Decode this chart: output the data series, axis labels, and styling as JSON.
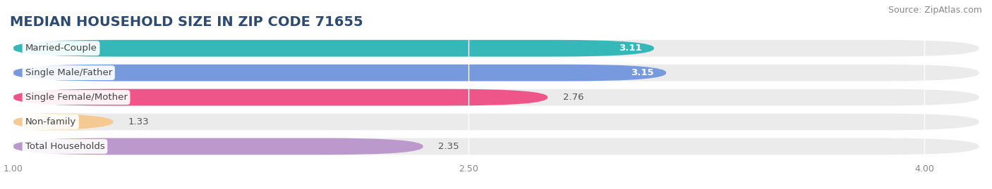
{
  "title": "MEDIAN HOUSEHOLD SIZE IN ZIP CODE 71655",
  "source": "Source: ZipAtlas.com",
  "categories": [
    "Married-Couple",
    "Single Male/Father",
    "Single Female/Mother",
    "Non-family",
    "Total Households"
  ],
  "values": [
    3.11,
    3.15,
    2.76,
    1.33,
    2.35
  ],
  "bar_colors": [
    "#36b8b8",
    "#7799dd",
    "#ee5588",
    "#f5c992",
    "#bb99cc"
  ],
  "xlim_left": 1.0,
  "xlim_right": 4.0,
  "xticks": [
    1.0,
    2.5,
    4.0
  ],
  "xtick_labels": [
    "1.00",
    "2.50",
    "4.00"
  ],
  "title_fontsize": 14,
  "source_fontsize": 9,
  "label_fontsize": 9.5,
  "value_fontsize": 9.5,
  "background_color": "#ffffff",
  "bar_bg_color": "#ebebeb",
  "bar_height": 0.68,
  "bar_gap": 0.32
}
